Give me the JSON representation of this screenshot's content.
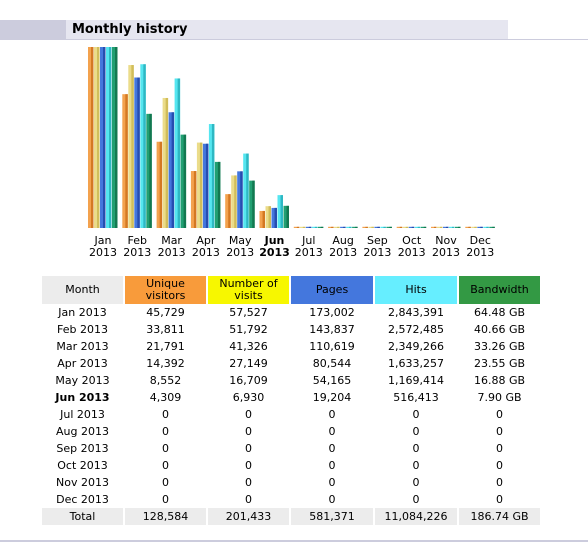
{
  "section_title": "Monthly history",
  "colors": {
    "header_bg": "#ccccdd",
    "unique_visitors": "#f89b3b",
    "number_of_visits": "#f7f700",
    "pages": "#4477dd",
    "hits": "#66eeff",
    "bandwidth": "#339944",
    "month_header": "#ececec",
    "total_row": "#ececec"
  },
  "chart_data": {
    "type": "bar",
    "categories": [
      "Jan 2013",
      "Feb 2013",
      "Mar 2013",
      "Apr 2013",
      "May 2013",
      "Jun 2013",
      "Jul 2013",
      "Aug 2013",
      "Sep 2013",
      "Oct 2013",
      "Nov 2013",
      "Dec 2013"
    ],
    "category_lines": [
      [
        "Jan",
        "2013"
      ],
      [
        "Feb",
        "2013"
      ],
      [
        "Mar",
        "2013"
      ],
      [
        "Apr",
        "2013"
      ],
      [
        "May",
        "2013"
      ],
      [
        "Jun",
        "2013"
      ],
      [
        "Jul",
        "2013"
      ],
      [
        "Aug",
        "2013"
      ],
      [
        "Sep",
        "2013"
      ],
      [
        "Oct",
        "2013"
      ],
      [
        "Nov",
        "2013"
      ],
      [
        "Dec",
        "2013"
      ]
    ],
    "current_month_index": 5,
    "series": [
      {
        "name": "Unique visitors",
        "values": [
          45729,
          33811,
          21791,
          14392,
          8552,
          4309,
          0,
          0,
          0,
          0,
          0,
          0
        ]
      },
      {
        "name": "Number of visits",
        "values": [
          57527,
          51792,
          41326,
          27149,
          16709,
          6930,
          0,
          0,
          0,
          0,
          0,
          0
        ]
      },
      {
        "name": "Pages",
        "values": [
          173002,
          143837,
          110619,
          80544,
          54165,
          19204,
          0,
          0,
          0,
          0,
          0,
          0
        ]
      },
      {
        "name": "Hits",
        "values": [
          2843391,
          2572485,
          2349266,
          1633257,
          1169414,
          516413,
          0,
          0,
          0,
          0,
          0,
          0
        ]
      },
      {
        "name": "Bandwidth",
        "values": [
          64.48,
          40.66,
          33.26,
          23.55,
          16.88,
          7.9,
          0,
          0,
          0,
          0,
          0,
          0
        ]
      }
    ],
    "grid": false
  },
  "table": {
    "headers": {
      "month": "Month",
      "unique_visitors": "Unique visitors",
      "number_of_visits": "Number of visits",
      "pages": "Pages",
      "hits": "Hits",
      "bandwidth": "Bandwidth"
    },
    "rows": [
      {
        "month": "Jan 2013",
        "uv": "45,729",
        "nv": "57,527",
        "pages": "173,002",
        "hits": "2,843,391",
        "bw": "64.48 GB"
      },
      {
        "month": "Feb 2013",
        "uv": "33,811",
        "nv": "51,792",
        "pages": "143,837",
        "hits": "2,572,485",
        "bw": "40.66 GB"
      },
      {
        "month": "Mar 2013",
        "uv": "21,791",
        "nv": "41,326",
        "pages": "110,619",
        "hits": "2,349,266",
        "bw": "33.26 GB"
      },
      {
        "month": "Apr 2013",
        "uv": "14,392",
        "nv": "27,149",
        "pages": "80,544",
        "hits": "1,633,257",
        "bw": "23.55 GB"
      },
      {
        "month": "May 2013",
        "uv": "8,552",
        "nv": "16,709",
        "pages": "54,165",
        "hits": "1,169,414",
        "bw": "16.88 GB"
      },
      {
        "month": "Jun 2013",
        "uv": "4,309",
        "nv": "6,930",
        "pages": "19,204",
        "hits": "516,413",
        "bw": "7.90 GB",
        "current": true
      },
      {
        "month": "Jul 2013",
        "uv": "0",
        "nv": "0",
        "pages": "0",
        "hits": "0",
        "bw": "0"
      },
      {
        "month": "Aug 2013",
        "uv": "0",
        "nv": "0",
        "pages": "0",
        "hits": "0",
        "bw": "0"
      },
      {
        "month": "Sep 2013",
        "uv": "0",
        "nv": "0",
        "pages": "0",
        "hits": "0",
        "bw": "0"
      },
      {
        "month": "Oct 2013",
        "uv": "0",
        "nv": "0",
        "pages": "0",
        "hits": "0",
        "bw": "0"
      },
      {
        "month": "Nov 2013",
        "uv": "0",
        "nv": "0",
        "pages": "0",
        "hits": "0",
        "bw": "0"
      },
      {
        "month": "Dec 2013",
        "uv": "0",
        "nv": "0",
        "pages": "0",
        "hits": "0",
        "bw": "0"
      }
    ],
    "total": {
      "label": "Total",
      "uv": "128,584",
      "nv": "201,433",
      "pages": "581,371",
      "hits": "11,084,226",
      "bw": "186.74 GB"
    }
  }
}
